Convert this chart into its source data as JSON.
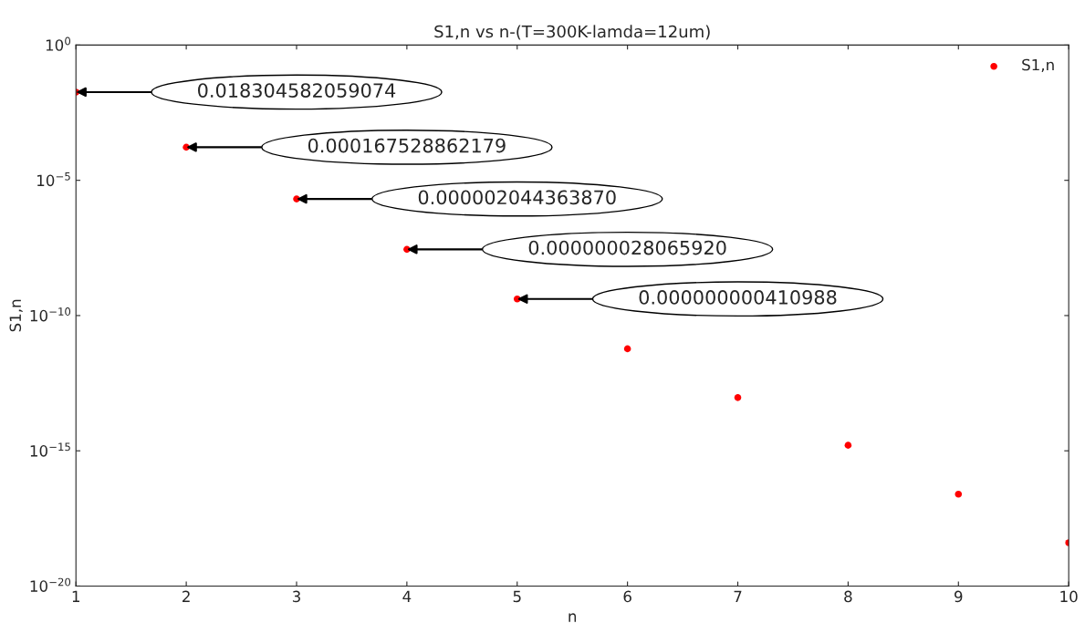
{
  "chart_data": {
    "type": "scatter",
    "title": "S1,n vs n-(T=300K-lamda=12um)",
    "xlabel": "n",
    "ylabel": "S1,n",
    "x": [
      1,
      2,
      3,
      4,
      5,
      6,
      7,
      8,
      9,
      10
    ],
    "series": [
      {
        "name": "S1,n",
        "color": "#ff0000",
        "values": [
          0.018304582059074,
          0.000167528862179,
          2.04436387e-06,
          2.806592e-08,
          4.10988e-10,
          5.9e-12,
          9.3e-14,
          1.6e-15,
          2.5e-17,
          4e-19
        ]
      }
    ],
    "annotations": [
      "0.018304582059074",
      "0.000167528862179",
      "0.000002044363870",
      "0.000000028065920",
      "0.000000000410988"
    ],
    "log": "y",
    "xlim": [
      1,
      10
    ],
    "ylim": [
      1e-20,
      1
    ],
    "xticks": [
      1,
      2,
      3,
      4,
      5,
      6,
      7,
      8,
      9,
      10
    ],
    "yticks": [
      {
        "value": 1e-20,
        "label": "10$^{−20}$"
      },
      {
        "value": 1e-15,
        "label": "10$^{−15}$"
      },
      {
        "value": 1e-10,
        "label": "10$^{−10}$"
      },
      {
        "value": 1e-05,
        "label": "10$^{−5}$"
      },
      {
        "value": 1,
        "label": "10$^{0}$"
      }
    ],
    "grid": false,
    "legend": "top right",
    "marker": "circle"
  }
}
